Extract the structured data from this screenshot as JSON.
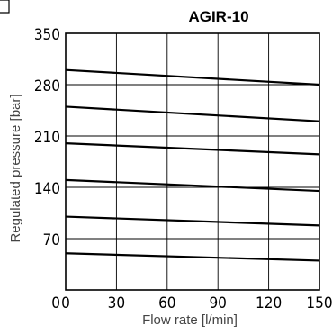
{
  "chart_data": {
    "type": "line",
    "title": "AGIR-10",
    "xlabel": "Flow rate [l/min]",
    "ylabel": "Regulated pressure  [bar]",
    "xlim": [
      0,
      150
    ],
    "ylim": [
      0,
      350
    ],
    "x_ticks": [
      0,
      30,
      60,
      90,
      120,
      150
    ],
    "y_ticks": [
      70,
      140,
      210,
      280,
      350
    ],
    "y_origin_label": "0",
    "grid": true,
    "legend": "none",
    "series": [
      {
        "x": [
          0,
          150
        ],
        "values": [
          300,
          280
        ]
      },
      {
        "x": [
          0,
          150
        ],
        "values": [
          250,
          230
        ]
      },
      {
        "x": [
          0,
          150
        ],
        "values": [
          200,
          185
        ]
      },
      {
        "x": [
          0,
          150
        ],
        "values": [
          150,
          135
        ]
      },
      {
        "x": [
          0,
          150
        ],
        "values": [
          100,
          88
        ]
      },
      {
        "x": [
          0,
          150
        ],
        "values": [
          50,
          40
        ]
      }
    ]
  }
}
